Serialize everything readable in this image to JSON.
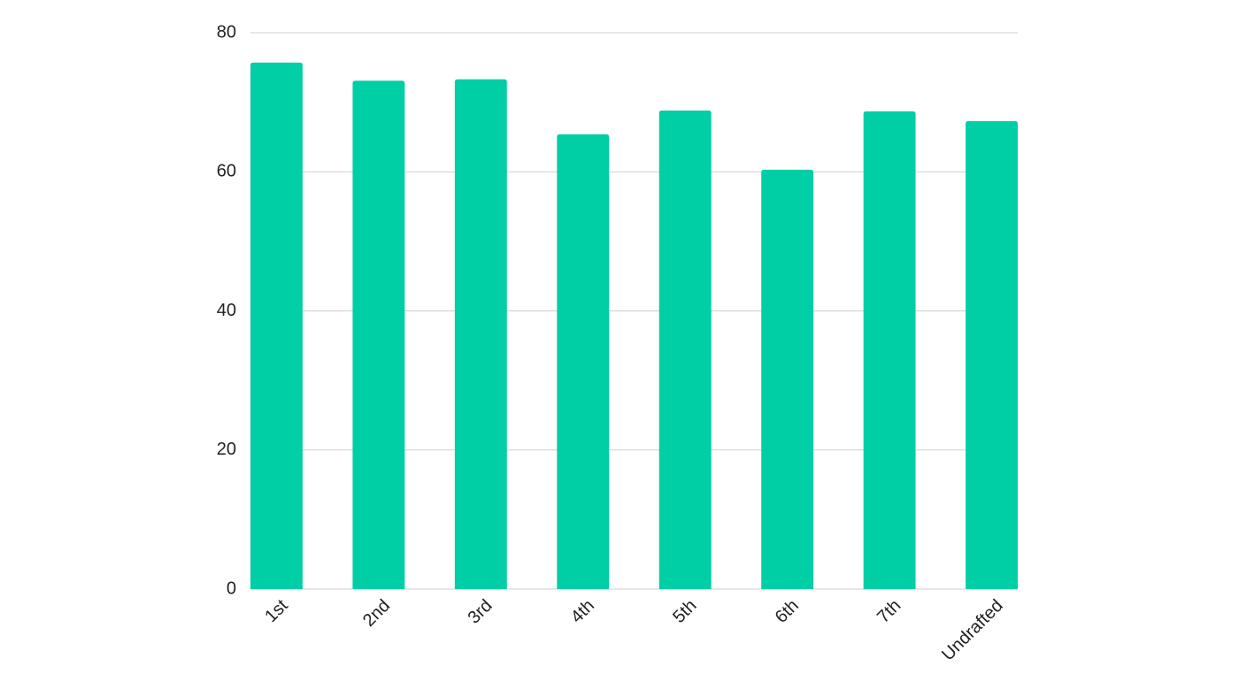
{
  "chart_data": {
    "type": "bar",
    "categories": [
      "1st",
      "2nd",
      "3rd",
      "4th",
      "5th",
      "6th",
      "7th",
      "Undrafted"
    ],
    "values": [
      75.7,
      73.1,
      73.3,
      65.4,
      68.8,
      60.3,
      68.7,
      67.3
    ],
    "color": "#00cea4",
    "ylim": [
      0,
      80
    ],
    "yticks": [
      0,
      20,
      40,
      60,
      80
    ],
    "grid": true
  }
}
